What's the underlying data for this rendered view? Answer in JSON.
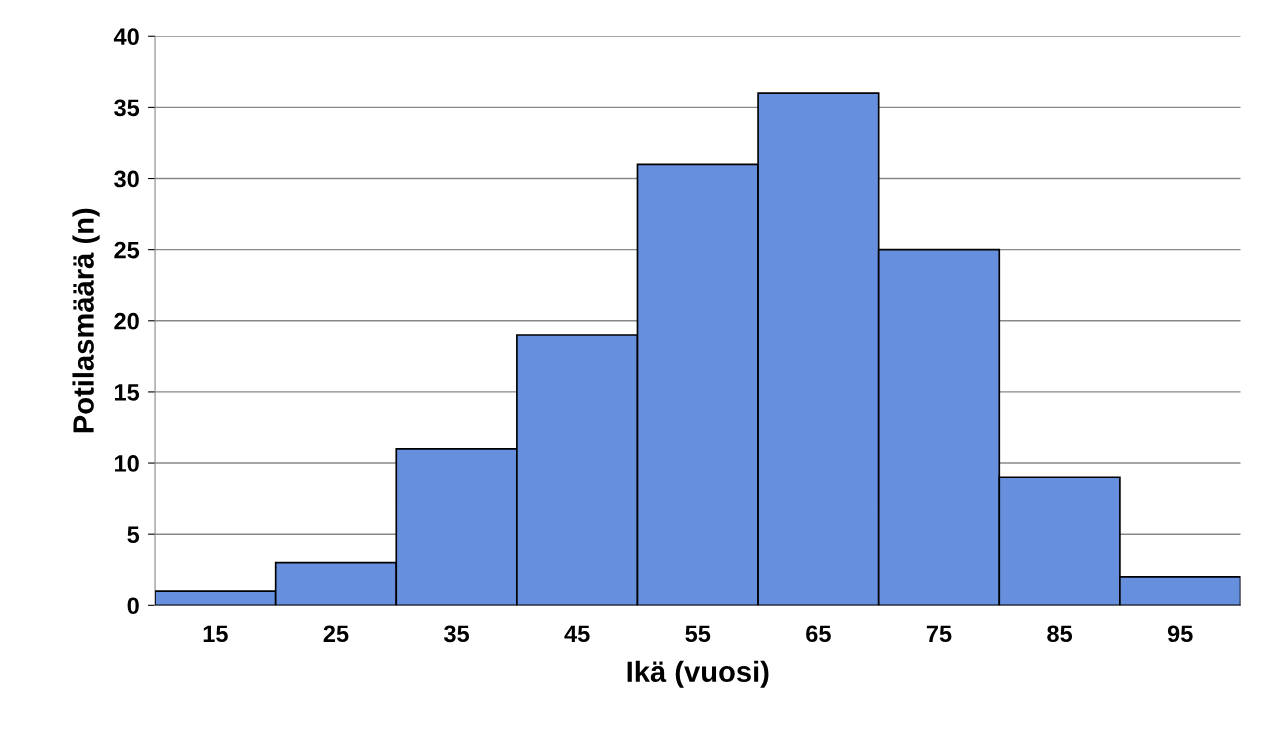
{
  "chart_data": {
    "type": "bar",
    "xlabel": "Ikä (vuosi)",
    "ylabel": "Potilasmäärä (n)",
    "categories": [
      "15",
      "25",
      "35",
      "45",
      "55",
      "65",
      "75",
      "85",
      "95"
    ],
    "values": [
      1,
      3,
      11,
      19,
      31,
      36,
      25,
      9,
      2
    ],
    "color": "#668fdd",
    "ylim": [
      0,
      40
    ],
    "yticks": [
      0,
      5,
      10,
      15,
      20,
      25,
      30,
      35,
      40
    ],
    "grid": "y",
    "legend": false
  }
}
